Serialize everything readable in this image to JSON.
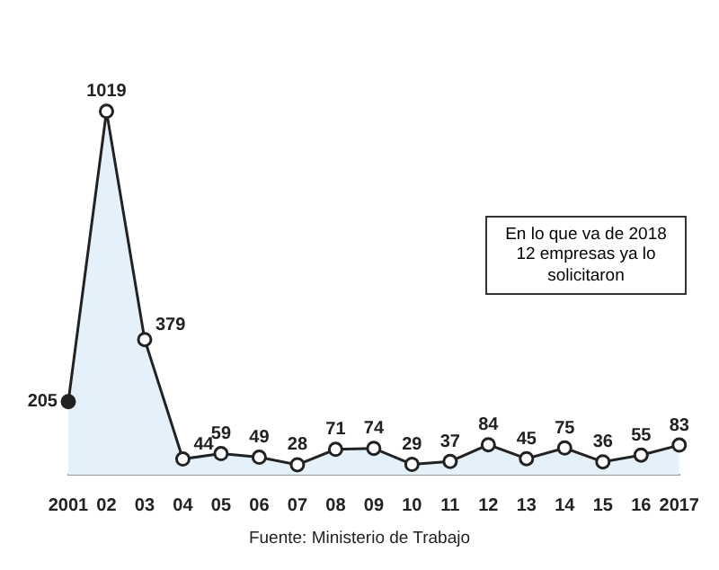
{
  "chart_data": {
    "type": "area",
    "categories": [
      "2001",
      "02",
      "03",
      "04",
      "05",
      "06",
      "07",
      "08",
      "09",
      "10",
      "11",
      "12",
      "13",
      "14",
      "15",
      "16",
      "2017"
    ],
    "values": [
      205,
      1019,
      379,
      44,
      59,
      49,
      28,
      71,
      74,
      29,
      37,
      84,
      45,
      75,
      36,
      55,
      83
    ],
    "color": "#222222",
    "data_labels": true,
    "marker": "circle",
    "grid": false,
    "annotations": [
      "En lo que va de 2018 12 empresas ya lo solicitaron",
      "Fuente: Ministerio de Trabajo"
    ]
  }
}
